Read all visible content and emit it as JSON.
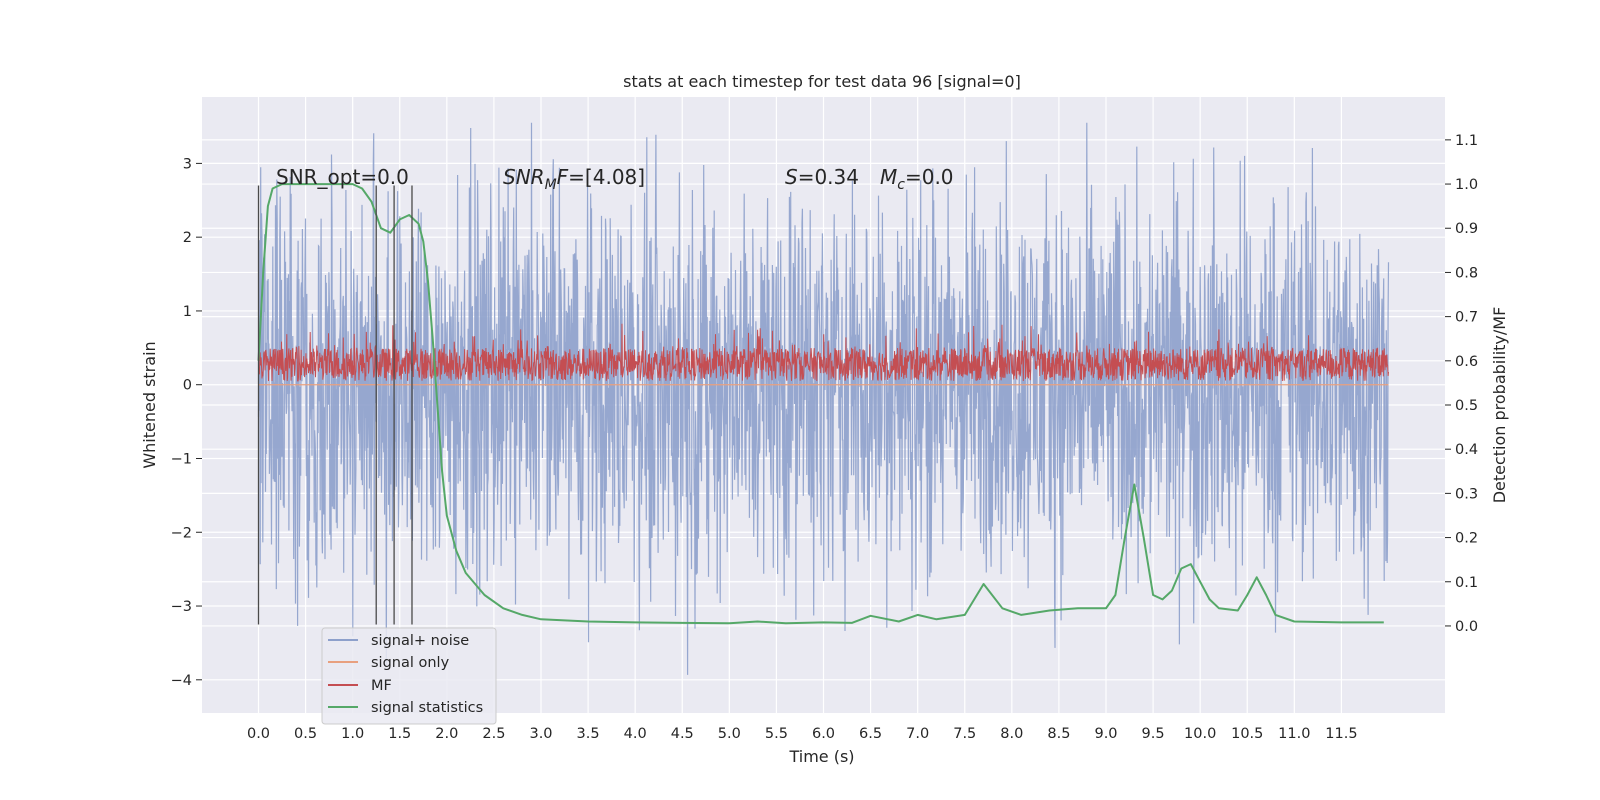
{
  "chart_data": {
    "type": "line",
    "title": "stats at each timestep for test data 96 [signal=0]",
    "xlabel": "Time (s)",
    "ylabel": "Whitened strain",
    "y2label": "Detection probability/MF",
    "xlim": [
      -0.6,
      12.6
    ],
    "ylim": [
      -4.45,
      3.9
    ],
    "y2lim": [
      -0.197,
      1.197
    ],
    "xticks": [
      0.0,
      0.5,
      1.0,
      1.5,
      2.0,
      2.5,
      3.0,
      3.5,
      4.0,
      4.5,
      5.0,
      5.5,
      6.0,
      6.5,
      7.0,
      7.5,
      8.0,
      8.5,
      9.0,
      9.5,
      10.0,
      10.5,
      11.0,
      11.5
    ],
    "xtick_labels": [
      "0.0",
      "0.5",
      "1.0",
      "1.5",
      "2.0",
      "2.5",
      "3.0",
      "3.5",
      "4.0",
      "4.5",
      "5.0",
      "5.5",
      "6.0",
      "6.5",
      "7.0",
      "7.5",
      "8.0",
      "8.5",
      "9.0",
      "9.5",
      "10.0",
      "10.5",
      "11.0",
      "11.5"
    ],
    "yticks": [
      -4,
      -3,
      -2,
      -1,
      0,
      1,
      2,
      3
    ],
    "ytick_labels": [
      "−4",
      "−3",
      "−2",
      "−1",
      "0",
      "1",
      "2",
      "3"
    ],
    "y2ticks": [
      0.0,
      0.1,
      0.2,
      0.3,
      0.4,
      0.5,
      0.6,
      0.7,
      0.8,
      0.9,
      1.0,
      1.1
    ],
    "y2tick_labels": [
      "0.0",
      "0.1",
      "0.2",
      "0.3",
      "0.4",
      "0.5",
      "0.6",
      "0.7",
      "0.8",
      "0.9",
      "1.0",
      "1.1"
    ],
    "grid": true,
    "legend_position": "lower-left",
    "annotations": {
      "snr_opt": "SNR_opt=0.0",
      "snr_mf_name": "SNR",
      "snr_mf_sub": "M",
      "snr_mf_tail": "F",
      "snr_mf_value": "=[4.08]",
      "s_name": "S",
      "s_value": "=0.34",
      "mc_name": "M",
      "mc_sub": "c",
      "mc_value": "=0.0"
    },
    "vlines": {
      "x": [
        0.0,
        1.25,
        1.44,
        1.63
      ],
      "y_range": [
        -3.25,
        2.7
      ]
    },
    "series": [
      {
        "name": "signal+ noise",
        "axis": "left",
        "color": "#8da0cb",
        "style": "dense-noise",
        "x_range": [
          0.0,
          12.0
        ],
        "core_band": [
          -1.5,
          1.5
        ],
        "min": -4.1,
        "max": 3.55
      },
      {
        "name": "signal only",
        "axis": "left",
        "color": "#e8a07f",
        "style": "line",
        "x": [
          0.0,
          12.0
        ],
        "values": [
          0.0,
          0.0
        ]
      },
      {
        "name": "MF",
        "axis": "left",
        "color": "#c44e52",
        "style": "dense-noise",
        "x_range": [
          0.0,
          12.0
        ],
        "core_band": [
          0.05,
          0.55
        ],
        "min": 0.0,
        "max": 1.0
      },
      {
        "name": "signal statistics",
        "axis": "right",
        "color": "#55a868",
        "style": "line",
        "x": [
          0.0,
          0.05,
          0.1,
          0.15,
          0.25,
          0.5,
          0.8,
          1.0,
          1.1,
          1.2,
          1.3,
          1.4,
          1.5,
          1.6,
          1.7,
          1.75,
          1.8,
          1.85,
          1.9,
          1.95,
          2.0,
          2.1,
          2.2,
          2.4,
          2.6,
          2.8,
          3.0,
          3.5,
          4.0,
          4.5,
          5.0,
          5.3,
          5.6,
          6.0,
          6.3,
          6.5,
          6.8,
          7.0,
          7.2,
          7.5,
          7.7,
          7.9,
          8.1,
          8.4,
          8.7,
          9.0,
          9.1,
          9.2,
          9.3,
          9.4,
          9.5,
          9.6,
          9.7,
          9.8,
          9.9,
          10.0,
          10.1,
          10.2,
          10.4,
          10.5,
          10.6,
          10.7,
          10.8,
          11.0,
          11.5,
          11.95
        ],
        "values": [
          0.6,
          0.8,
          0.95,
          0.99,
          1.0,
          1.0,
          1.0,
          1.0,
          0.99,
          0.96,
          0.9,
          0.89,
          0.92,
          0.93,
          0.91,
          0.87,
          0.78,
          0.65,
          0.5,
          0.35,
          0.25,
          0.17,
          0.12,
          0.07,
          0.04,
          0.025,
          0.015,
          0.01,
          0.008,
          0.007,
          0.006,
          0.01,
          0.006,
          0.008,
          0.007,
          0.023,
          0.01,
          0.025,
          0.015,
          0.025,
          0.095,
          0.04,
          0.025,
          0.035,
          0.04,
          0.04,
          0.07,
          0.2,
          0.32,
          0.2,
          0.07,
          0.06,
          0.08,
          0.13,
          0.14,
          0.1,
          0.06,
          0.04,
          0.035,
          0.07,
          0.11,
          0.07,
          0.025,
          0.01,
          0.008,
          0.008
        ]
      }
    ]
  }
}
